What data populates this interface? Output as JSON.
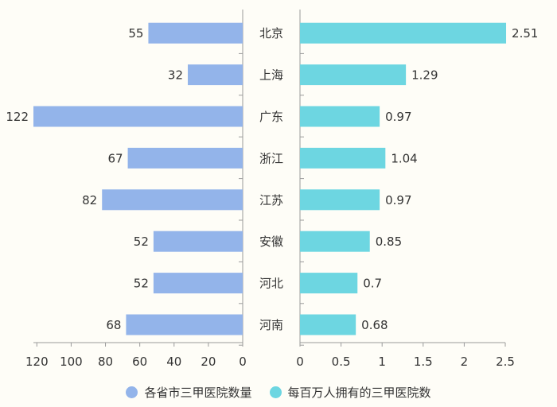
{
  "chart_data": {
    "type": "bar",
    "orientation": "horizontal",
    "layout": "butterfly",
    "categories": [
      "北京",
      "上海",
      "广东",
      "浙江",
      "江苏",
      "安徽",
      "河北",
      "河南"
    ],
    "series": [
      {
        "name": "各省市三甲医院数量",
        "values": [
          55,
          32,
          122,
          67,
          82,
          52,
          52,
          68
        ],
        "labels": [
          "55",
          "32",
          "122",
          "67",
          "82",
          "52",
          "52",
          "68"
        ],
        "color": "#93b4ea",
        "side": "left",
        "xlim": [
          0,
          122
        ],
        "ticks": [
          120,
          100,
          80,
          60,
          40,
          20,
          0
        ]
      },
      {
        "name": "每百万人拥有的三甲医院数",
        "values": [
          2.51,
          1.29,
          0.97,
          1.04,
          0.97,
          0.85,
          0.7,
          0.68
        ],
        "labels": [
          "2.51",
          "1.29",
          "0.97",
          "1.04",
          "0.97",
          "0.85",
          "0.7",
          "0.68"
        ],
        "color": "#6dd6e1",
        "side": "right",
        "xlim": [
          0,
          2.5
        ],
        "ticks": [
          "0",
          "0.5",
          "1",
          "1.5",
          "2",
          "2.5"
        ]
      }
    ],
    "legend": {
      "position": "bottom"
    },
    "grid": false
  }
}
